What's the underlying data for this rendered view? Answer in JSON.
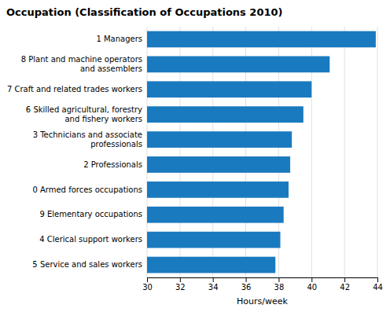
{
  "chart_data": {
    "type": "bar",
    "orientation": "horizontal",
    "title": "Occupation (Classification of Occupations 2010)",
    "xlabel": "Hours/week",
    "categories": [
      "5 Service and sales workers",
      "4 Clerical support workers",
      "9 Elementary occupations",
      "0 Armed forces occupations",
      "2 Professionals",
      "3 Technicians and associate\nprofessionals",
      "6 Skilled agricultural, forestry\nand fishery workers",
      "7 Craft and related trades workers",
      "8 Plant and machine operators\nand assemblers",
      "1 Managers"
    ],
    "values": [
      37.8,
      38.1,
      38.3,
      38.6,
      38.7,
      38.8,
      39.5,
      40.0,
      41.1,
      43.9
    ],
    "color": "#1a7abf",
    "xlim": [
      30,
      44
    ],
    "xticks": [
      30,
      32,
      34,
      36,
      38,
      40,
      42,
      44
    ],
    "grid": true
  }
}
